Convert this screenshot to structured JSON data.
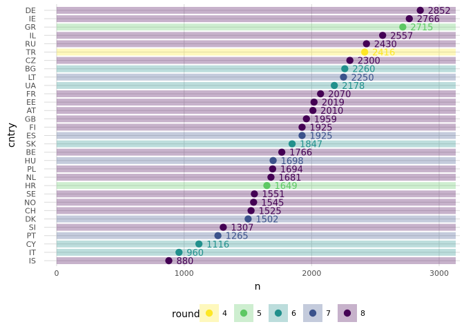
{
  "chart_data": {
    "type": "bar",
    "xlabel": "n",
    "ylabel": "cntry",
    "xlim": [
      0,
      3150
    ],
    "x_ticks": [
      0,
      1000,
      2000,
      3000
    ],
    "grid": true,
    "legend": {
      "title": "round",
      "position": "bottom",
      "entries": [
        {
          "label": "4",
          "color": "#FDE725"
        },
        {
          "label": "5",
          "color": "#5DC863"
        },
        {
          "label": "6",
          "color": "#21908C"
        },
        {
          "label": "7",
          "color": "#3B528B"
        },
        {
          "label": "8",
          "color": "#440154"
        }
      ]
    },
    "points": [
      {
        "cntry": "DE",
        "n": 2852,
        "round": "8"
      },
      {
        "cntry": "IE",
        "n": 2766,
        "round": "8"
      },
      {
        "cntry": "GR",
        "n": 2715,
        "round": "5"
      },
      {
        "cntry": "IL",
        "n": 2557,
        "round": "8"
      },
      {
        "cntry": "RU",
        "n": 2430,
        "round": "8"
      },
      {
        "cntry": "TR",
        "n": 2416,
        "round": "4"
      },
      {
        "cntry": "CZ",
        "n": 2300,
        "round": "8"
      },
      {
        "cntry": "BG",
        "n": 2260,
        "round": "6"
      },
      {
        "cntry": "LT",
        "n": 2250,
        "round": "7"
      },
      {
        "cntry": "UA",
        "n": 2178,
        "round": "6"
      },
      {
        "cntry": "FR",
        "n": 2070,
        "round": "8"
      },
      {
        "cntry": "EE",
        "n": 2019,
        "round": "8"
      },
      {
        "cntry": "AT",
        "n": 2010,
        "round": "8"
      },
      {
        "cntry": "GB",
        "n": 1959,
        "round": "8"
      },
      {
        "cntry": "FI",
        "n": 1925,
        "round": "8"
      },
      {
        "cntry": "ES",
        "n": 1925,
        "round": "7"
      },
      {
        "cntry": "SK",
        "n": 1847,
        "round": "6"
      },
      {
        "cntry": "BE",
        "n": 1766,
        "round": "8"
      },
      {
        "cntry": "HU",
        "n": 1698,
        "round": "7"
      },
      {
        "cntry": "PL",
        "n": 1694,
        "round": "8"
      },
      {
        "cntry": "NL",
        "n": 1681,
        "round": "8"
      },
      {
        "cntry": "HR",
        "n": 1649,
        "round": "5"
      },
      {
        "cntry": "SE",
        "n": 1551,
        "round": "8"
      },
      {
        "cntry": "NO",
        "n": 1545,
        "round": "8"
      },
      {
        "cntry": "CH",
        "n": 1525,
        "round": "8"
      },
      {
        "cntry": "DK",
        "n": 1502,
        "round": "7"
      },
      {
        "cntry": "SI",
        "n": 1307,
        "round": "8"
      },
      {
        "cntry": "PT",
        "n": 1265,
        "round": "7"
      },
      {
        "cntry": "CY",
        "n": 1116,
        "round": "6"
      },
      {
        "cntry": "IT",
        "n": 960,
        "round": "6"
      },
      {
        "cntry": "IS",
        "n": 880,
        "round": "8"
      }
    ]
  }
}
